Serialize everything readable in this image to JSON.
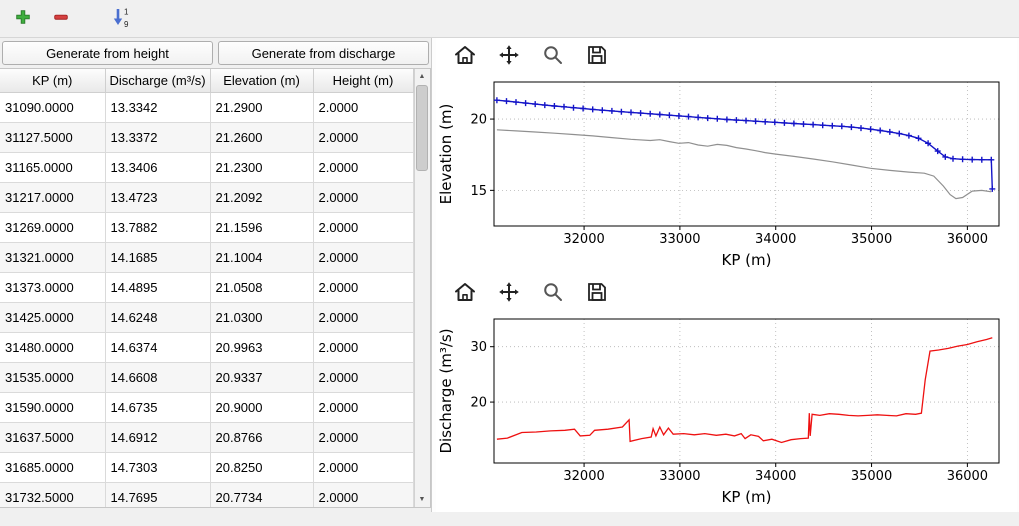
{
  "main_toolbar": {
    "icons": [
      "add-icon",
      "remove-icon",
      "sort-numeric-ascending-icon"
    ],
    "sort_top_label": "1",
    "sort_bottom_label": "9"
  },
  "buttons": {
    "generate_from_height": "Generate from height",
    "generate_from_discharge": "Generate from discharge"
  },
  "table": {
    "columns": [
      "KP (m)",
      "Discharge (m³/s)",
      "Elevation (m)",
      "Height (m)"
    ],
    "rows": [
      [
        "31090.0000",
        "13.3342",
        "21.2900",
        "2.0000"
      ],
      [
        "31127.5000",
        "13.3372",
        "21.2600",
        "2.0000"
      ],
      [
        "31165.0000",
        "13.3406",
        "21.2300",
        "2.0000"
      ],
      [
        "31217.0000",
        "13.4723",
        "21.2092",
        "2.0000"
      ],
      [
        "31269.0000",
        "13.7882",
        "21.1596",
        "2.0000"
      ],
      [
        "31321.0000",
        "14.1685",
        "21.1004",
        "2.0000"
      ],
      [
        "31373.0000",
        "14.4895",
        "21.0508",
        "2.0000"
      ],
      [
        "31425.0000",
        "14.6248",
        "21.0300",
        "2.0000"
      ],
      [
        "31480.0000",
        "14.6374",
        "20.9963",
        "2.0000"
      ],
      [
        "31535.0000",
        "14.6608",
        "20.9337",
        "2.0000"
      ],
      [
        "31590.0000",
        "14.6735",
        "20.9000",
        "2.0000"
      ],
      [
        "31637.5000",
        "14.6912",
        "20.8766",
        "2.0000"
      ],
      [
        "31685.0000",
        "14.7303",
        "20.8250",
        "2.0000"
      ],
      [
        "31732.5000",
        "14.7695",
        "20.7734",
        "2.0000"
      ]
    ]
  },
  "nav_toolbar": {
    "icons": [
      "home-icon",
      "pan-icon",
      "zoom-icon",
      "save-icon"
    ]
  },
  "colors": {
    "elevation_series": "#1414c8",
    "bed_series": "#909090",
    "discharge_series": "#ee1111"
  },
  "chart_data": [
    {
      "type": "line",
      "title": "",
      "xlabel": "KP (m)",
      "ylabel": "Elevation (m)",
      "xlim": [
        31060,
        36330
      ],
      "ylim": [
        12.5,
        22.6
      ],
      "xticks": [
        32000,
        33000,
        34000,
        35000,
        36000
      ],
      "yticks": [
        15,
        20
      ],
      "grid": true,
      "legend": "none",
      "series": [
        {
          "name": "elevation-profile",
          "color": "#1414c8",
          "marker": "+",
          "width": 1.4,
          "x": [
            31090,
            31190,
            31290,
            31390,
            31490,
            31590,
            31690,
            31790,
            31890,
            31990,
            32090,
            32190,
            32290,
            32390,
            32490,
            32590,
            32690,
            32790,
            32890,
            32990,
            33090,
            33190,
            33290,
            33390,
            33490,
            33590,
            33690,
            33790,
            33890,
            33990,
            34090,
            34190,
            34290,
            34390,
            34490,
            34590,
            34690,
            34790,
            34890,
            34990,
            35090,
            35190,
            35290,
            35390,
            35490,
            35590,
            35690,
            35770,
            35850,
            35950,
            36050,
            36150,
            36250,
            36260
          ],
          "y": [
            21.32,
            21.26,
            21.19,
            21.12,
            21.05,
            20.98,
            20.92,
            20.86,
            20.8,
            20.74,
            20.68,
            20.62,
            20.57,
            20.52,
            20.47,
            20.42,
            20.37,
            20.32,
            20.27,
            20.22,
            20.17,
            20.12,
            20.07,
            20.02,
            19.97,
            19.93,
            19.89,
            19.85,
            19.81,
            19.77,
            19.73,
            19.69,
            19.65,
            19.61,
            19.57,
            19.53,
            19.49,
            19.44,
            19.37,
            19.29,
            19.2,
            19.1,
            18.98,
            18.84,
            18.65,
            18.3,
            17.75,
            17.35,
            17.22,
            17.18,
            17.16,
            17.15,
            17.14,
            15.1
          ]
        },
        {
          "name": "bed-profile",
          "color": "#909090",
          "marker": null,
          "width": 1.2,
          "x": [
            31090,
            31290,
            31490,
            31690,
            31890,
            32090,
            32290,
            32490,
            32690,
            32790,
            32890,
            32990,
            33090,
            33190,
            33290,
            33390,
            33490,
            33590,
            33690,
            33790,
            33890,
            33990,
            34190,
            34390,
            34590,
            34790,
            34990,
            35190,
            35390,
            35550,
            35650,
            35750,
            35820,
            35880,
            35950,
            36050,
            36150,
            36250
          ],
          "y": [
            19.25,
            19.17,
            19.09,
            19.01,
            18.92,
            18.82,
            18.7,
            18.58,
            18.5,
            18.55,
            18.42,
            18.3,
            18.35,
            18.18,
            18.1,
            18.22,
            18.15,
            18.0,
            17.9,
            17.78,
            17.65,
            17.55,
            17.38,
            17.2,
            17.0,
            16.78,
            16.55,
            16.4,
            16.28,
            16.2,
            16.0,
            15.3,
            14.7,
            14.42,
            14.5,
            14.95,
            15.0,
            14.9
          ]
        }
      ]
    },
    {
      "type": "line",
      "title": "",
      "xlabel": "KP (m)",
      "ylabel": "Discharge (m³/s)",
      "xlim": [
        31060,
        36330
      ],
      "ylim": [
        9,
        35
      ],
      "xticks": [
        32000,
        33000,
        34000,
        35000,
        36000
      ],
      "yticks": [
        20,
        30
      ],
      "grid": true,
      "legend": "none",
      "series": [
        {
          "name": "discharge-profile",
          "color": "#ee1111",
          "marker": null,
          "width": 1.3,
          "x": [
            31090,
            31200,
            31350,
            31500,
            31650,
            31800,
            31900,
            31960,
            32060,
            32110,
            32250,
            32400,
            32470,
            32480,
            32600,
            32700,
            32720,
            32750,
            32790,
            32830,
            32880,
            32930,
            33040,
            33150,
            33260,
            33380,
            33480,
            33570,
            33640,
            33680,
            33740,
            33820,
            33870,
            33960,
            34060,
            34160,
            34260,
            34340,
            34350,
            34360,
            34380,
            34460,
            34560,
            34660,
            34760,
            34860,
            34960,
            35060,
            35160,
            35260,
            35360,
            35460,
            35520,
            35560,
            35610,
            35700,
            35800,
            35900,
            36000,
            36100,
            36200,
            36260
          ],
          "y": [
            13.3,
            13.5,
            14.5,
            14.6,
            14.8,
            14.9,
            15.1,
            13.9,
            14.0,
            14.9,
            15.1,
            15.5,
            16.8,
            12.9,
            13.4,
            13.7,
            15.2,
            13.9,
            15.5,
            14.1,
            15.3,
            14.2,
            14.3,
            14.1,
            14.3,
            14.0,
            14.2,
            13.9,
            14.3,
            13.4,
            14.1,
            13.8,
            13.0,
            13.3,
            12.7,
            13.2,
            13.4,
            13.5,
            18.0,
            13.9,
            17.8,
            17.6,
            17.9,
            17.8,
            17.6,
            17.5,
            17.6,
            17.7,
            17.6,
            17.5,
            17.9,
            17.8,
            18.0,
            24.0,
            29.2,
            29.4,
            29.7,
            30.1,
            30.4,
            30.9,
            31.3,
            31.6
          ]
        }
      ]
    }
  ]
}
